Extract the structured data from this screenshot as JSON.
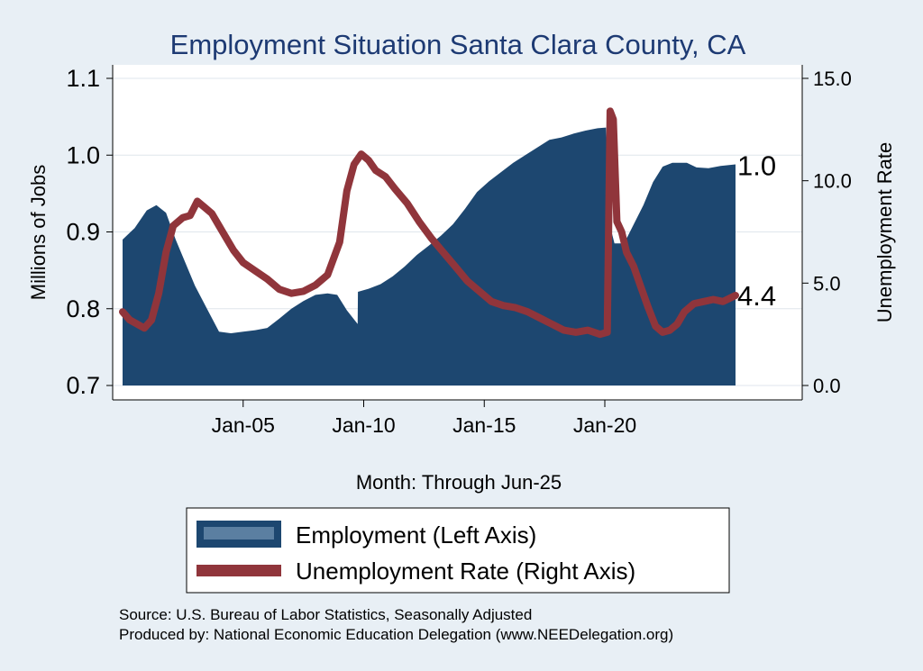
{
  "chart_data": {
    "type": "area+line",
    "title": "Employment Situation Santa Clara  County, CA",
    "xlabel": "Month: Through Jun-25",
    "ylabel_left": "Millions of Jobs",
    "ylabel_right": "Unemployment Rate",
    "x_range": [
      2000.0,
      2025.42
    ],
    "x_ticks": [
      {
        "value": 2005.0,
        "label": "Jan-05"
      },
      {
        "value": 2010.0,
        "label": "Jan-10"
      },
      {
        "value": 2015.0,
        "label": "Jan-15"
      },
      {
        "value": 2020.0,
        "label": "Jan-20"
      }
    ],
    "ylim_left": [
      0.7,
      1.1
    ],
    "yticks_left": [
      "0.7",
      "0.8",
      "0.9",
      "1.0",
      "1.1"
    ],
    "ylim_right": [
      0.0,
      15.0
    ],
    "yticks_right": [
      "0.0",
      "5.0",
      "10.0",
      "15.0"
    ],
    "series": [
      {
        "name": "Employment (Left Axis)",
        "axis": "left",
        "kind": "area",
        "color": "#1d4770",
        "points": [
          [
            2000.0,
            0.89
          ],
          [
            2000.5,
            0.905
          ],
          [
            2001.0,
            0.928
          ],
          [
            2001.4,
            0.935
          ],
          [
            2001.8,
            0.925
          ],
          [
            2002.2,
            0.89
          ],
          [
            2002.6,
            0.86
          ],
          [
            2003.0,
            0.83
          ],
          [
            2003.5,
            0.8
          ],
          [
            2004.0,
            0.77
          ],
          [
            2004.5,
            0.768
          ],
          [
            2005.0,
            0.77
          ],
          [
            2005.5,
            0.772
          ],
          [
            2006.0,
            0.775
          ],
          [
            2006.5,
            0.787
          ],
          [
            2007.0,
            0.8
          ],
          [
            2007.5,
            0.81
          ],
          [
            2008.0,
            0.818
          ],
          [
            2008.5,
            0.82
          ],
          [
            2008.9,
            0.818
          ],
          [
            2009.3,
            0.798
          ],
          [
            2009.75,
            0.78
          ],
          [
            2009.76,
            0.822
          ],
          [
            2010.2,
            0.826
          ],
          [
            2010.7,
            0.832
          ],
          [
            2011.2,
            0.842
          ],
          [
            2011.7,
            0.855
          ],
          [
            2012.2,
            0.87
          ],
          [
            2012.7,
            0.882
          ],
          [
            2013.2,
            0.895
          ],
          [
            2013.7,
            0.91
          ],
          [
            2014.2,
            0.93
          ],
          [
            2014.7,
            0.952
          ],
          [
            2015.2,
            0.966
          ],
          [
            2015.7,
            0.978
          ],
          [
            2016.2,
            0.99
          ],
          [
            2016.7,
            1.0
          ],
          [
            2017.2,
            1.01
          ],
          [
            2017.7,
            1.02
          ],
          [
            2018.2,
            1.023
          ],
          [
            2018.7,
            1.028
          ],
          [
            2019.2,
            1.032
          ],
          [
            2019.7,
            1.035
          ],
          [
            2020.05,
            1.036
          ],
          [
            2020.12,
            0.92
          ],
          [
            2020.4,
            0.885
          ],
          [
            2020.8,
            0.885
          ],
          [
            2021.2,
            0.91
          ],
          [
            2021.6,
            0.935
          ],
          [
            2022.0,
            0.965
          ],
          [
            2022.4,
            0.985
          ],
          [
            2022.8,
            0.99
          ],
          [
            2023.4,
            0.99
          ],
          [
            2023.8,
            0.984
          ],
          [
            2024.3,
            0.983
          ],
          [
            2024.8,
            0.986
          ],
          [
            2025.42,
            0.988
          ]
        ]
      },
      {
        "name": "Unemployment Rate (Right Axis)",
        "axis": "right",
        "kind": "line",
        "color": "#90353b",
        "points": [
          [
            2000.0,
            3.6
          ],
          [
            2000.3,
            3.2
          ],
          [
            2000.6,
            3.0
          ],
          [
            2000.9,
            2.8
          ],
          [
            2001.2,
            3.2
          ],
          [
            2001.5,
            4.5
          ],
          [
            2001.8,
            6.5
          ],
          [
            2002.1,
            7.8
          ],
          [
            2002.5,
            8.2
          ],
          [
            2002.8,
            8.3
          ],
          [
            2003.1,
            9.0
          ],
          [
            2003.4,
            8.7
          ],
          [
            2003.7,
            8.4
          ],
          [
            2004.0,
            7.8
          ],
          [
            2004.3,
            7.2
          ],
          [
            2004.6,
            6.6
          ],
          [
            2005.0,
            6.0
          ],
          [
            2005.5,
            5.6
          ],
          [
            2006.0,
            5.2
          ],
          [
            2006.5,
            4.7
          ],
          [
            2007.0,
            4.5
          ],
          [
            2007.5,
            4.6
          ],
          [
            2008.0,
            4.9
          ],
          [
            2008.5,
            5.4
          ],
          [
            2009.0,
            7.0
          ],
          [
            2009.3,
            9.5
          ],
          [
            2009.6,
            10.8
          ],
          [
            2009.9,
            11.3
          ],
          [
            2010.2,
            11.0
          ],
          [
            2010.5,
            10.5
          ],
          [
            2010.9,
            10.2
          ],
          [
            2011.3,
            9.6
          ],
          [
            2011.8,
            8.9
          ],
          [
            2012.3,
            8.0
          ],
          [
            2012.8,
            7.2
          ],
          [
            2013.3,
            6.5
          ],
          [
            2013.8,
            5.8
          ],
          [
            2014.3,
            5.1
          ],
          [
            2014.8,
            4.6
          ],
          [
            2015.3,
            4.1
          ],
          [
            2015.8,
            3.9
          ],
          [
            2016.3,
            3.8
          ],
          [
            2016.8,
            3.6
          ],
          [
            2017.3,
            3.3
          ],
          [
            2017.8,
            3.0
          ],
          [
            2018.3,
            2.7
          ],
          [
            2018.8,
            2.6
          ],
          [
            2019.3,
            2.7
          ],
          [
            2019.8,
            2.5
          ],
          [
            2020.1,
            2.6
          ],
          [
            2020.22,
            13.4
          ],
          [
            2020.35,
            13.0
          ],
          [
            2020.5,
            8.0
          ],
          [
            2020.7,
            7.5
          ],
          [
            2020.9,
            6.5
          ],
          [
            2021.2,
            5.8
          ],
          [
            2021.5,
            4.8
          ],
          [
            2021.8,
            3.8
          ],
          [
            2022.1,
            2.9
          ],
          [
            2022.4,
            2.6
          ],
          [
            2022.7,
            2.7
          ],
          [
            2023.0,
            3.0
          ],
          [
            2023.3,
            3.6
          ],
          [
            2023.7,
            4.0
          ],
          [
            2024.1,
            4.1
          ],
          [
            2024.5,
            4.2
          ],
          [
            2024.9,
            4.1
          ],
          [
            2025.42,
            4.4
          ]
        ]
      }
    ],
    "end_labels": [
      {
        "series": "Employment (Left Axis)",
        "value": 0.988,
        "text": "1.0"
      },
      {
        "series": "Unemployment Rate (Right Axis)",
        "value": 4.4,
        "text": "4.4"
      }
    ],
    "legend": {
      "placement": "bottom-center",
      "entries": [
        "Employment (Left Axis)",
        "Unemployment Rate (Right Axis)"
      ]
    },
    "source_lines": [
      "Source: U.S. Bureau of Labor Statistics, Seasonally Adjusted",
      "Produced by: National Economic Education Delegation (www.NEEDelegation.org)"
    ]
  },
  "colors": {
    "background": "#e8eff5",
    "plot_background": "#ffffff",
    "gridline": "#dfe6ec",
    "title": "#1d3a73",
    "legend_area_highlight": "#5b7fa1"
  }
}
